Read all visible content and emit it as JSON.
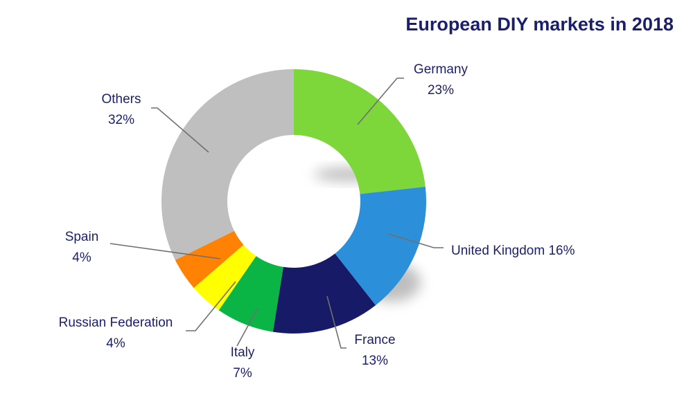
{
  "chart_data": {
    "type": "pie",
    "variant": "donut",
    "title": "European DIY markets in 2018",
    "unit": "%",
    "slices": [
      {
        "name": "Germany",
        "value": 23,
        "label_value": "23%",
        "color": "#7dd63a"
      },
      {
        "name": "United Kingdom",
        "value": 16,
        "label_value": "16%",
        "color": "#2b90d9"
      },
      {
        "name": "France",
        "value": 13,
        "label_value": "13%",
        "color": "#171a66"
      },
      {
        "name": "Italy",
        "value": 7,
        "label_value": "7%",
        "color": "#0bb545"
      },
      {
        "name": "Russian Federation",
        "value": 4,
        "label_value": "4%",
        "color": "#ffff00"
      },
      {
        "name": "Spain",
        "value": 4,
        "label_value": "4%",
        "color": "#ff8205"
      },
      {
        "name": "Others",
        "value": 32,
        "label_value": "32%",
        "color": "#bfbfbf"
      }
    ],
    "legend": "none",
    "start_angle": "12 o'clock, clockwise"
  },
  "colors": {
    "title": "#1b1e6b",
    "label_text": "#1b1e6b",
    "leader_line": "#6f6f6f",
    "background": "#ffffff"
  }
}
